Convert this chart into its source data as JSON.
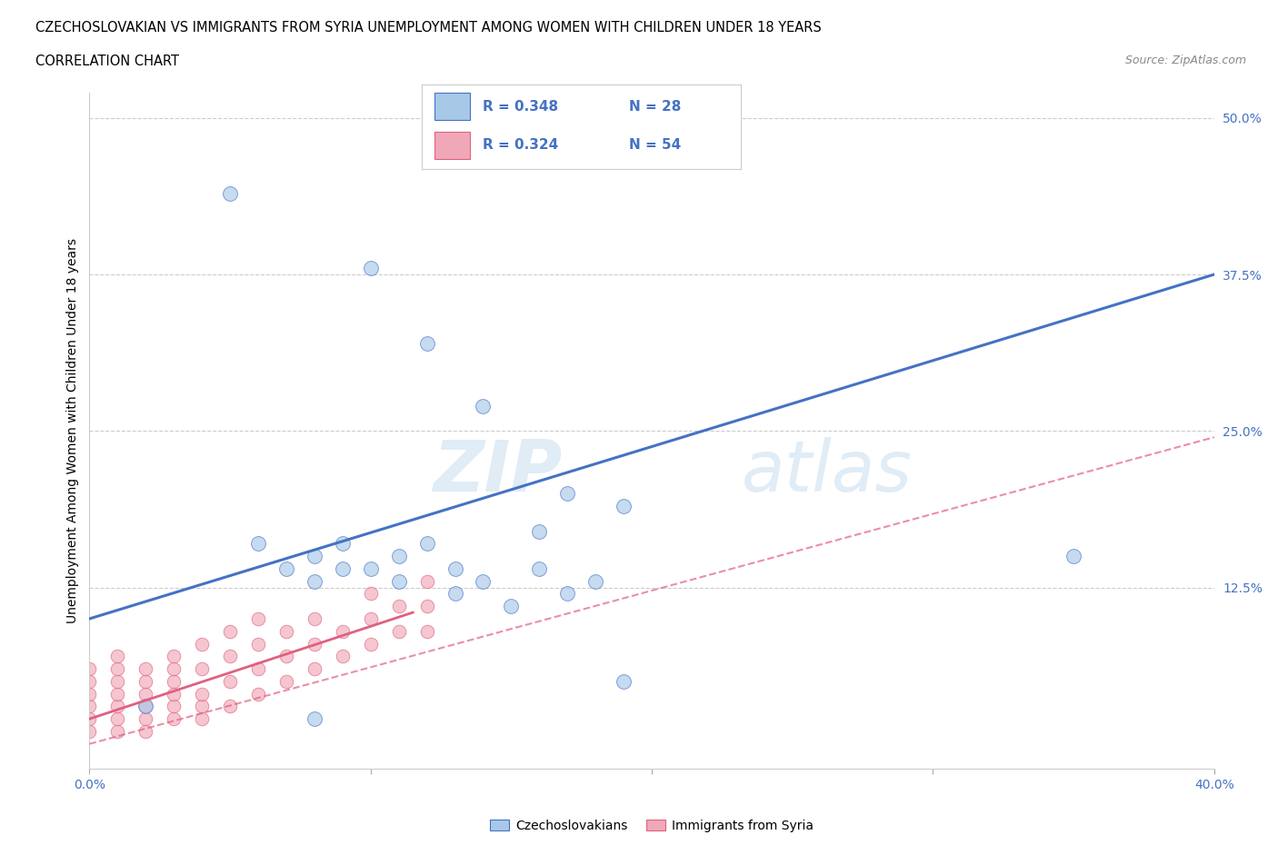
{
  "title_line1": "CZECHOSLOVAKIAN VS IMMIGRANTS FROM SYRIA UNEMPLOYMENT AMONG WOMEN WITH CHILDREN UNDER 18 YEARS",
  "title_line2": "CORRELATION CHART",
  "source": "Source: ZipAtlas.com",
  "ylabel": "Unemployment Among Women with Children Under 18 years",
  "xlim": [
    0.0,
    0.4
  ],
  "ylim": [
    -0.02,
    0.52
  ],
  "xticks": [
    0.0,
    0.1,
    0.2,
    0.3,
    0.4
  ],
  "xticklabels": [
    "0.0%",
    "",
    "",
    "",
    "40.0%"
  ],
  "ytick_positions": [
    0.0,
    0.125,
    0.25,
    0.375,
    0.5
  ],
  "ytick_labels_right": [
    "",
    "12.5%",
    "25.0%",
    "37.5%",
    "50.0%"
  ],
  "grid_color": "#cccccc",
  "watermark_zip": "ZIP",
  "watermark_atlas": "atlas",
  "legend_R1": "R = 0.348",
  "legend_N1": "N = 28",
  "legend_R2": "R = 0.324",
  "legend_N2": "N = 54",
  "blue_color": "#a8c8e8",
  "pink_color": "#f0a8b8",
  "line_blue": "#4472c4",
  "line_pink": "#e06080",
  "legend_text_color": "#4472c4",
  "blue_scatter_x": [
    0.05,
    0.1,
    0.12,
    0.14,
    0.17,
    0.02,
    0.06,
    0.07,
    0.08,
    0.08,
    0.09,
    0.09,
    0.1,
    0.11,
    0.11,
    0.12,
    0.13,
    0.13,
    0.14,
    0.15,
    0.16,
    0.17,
    0.19,
    0.35,
    0.18,
    0.16,
    0.08,
    0.19
  ],
  "blue_scatter_y": [
    0.44,
    0.38,
    0.32,
    0.27,
    0.2,
    0.03,
    0.16,
    0.14,
    0.13,
    0.15,
    0.14,
    0.16,
    0.14,
    0.13,
    0.15,
    0.16,
    0.12,
    0.14,
    0.13,
    0.11,
    0.14,
    0.12,
    0.19,
    0.15,
    0.13,
    0.17,
    0.02,
    0.05
  ],
  "pink_scatter_x": [
    0.0,
    0.0,
    0.0,
    0.0,
    0.0,
    0.0,
    0.01,
    0.01,
    0.01,
    0.01,
    0.01,
    0.01,
    0.01,
    0.02,
    0.02,
    0.02,
    0.02,
    0.02,
    0.02,
    0.03,
    0.03,
    0.03,
    0.03,
    0.03,
    0.03,
    0.04,
    0.04,
    0.04,
    0.04,
    0.04,
    0.05,
    0.05,
    0.05,
    0.05,
    0.06,
    0.06,
    0.06,
    0.06,
    0.07,
    0.07,
    0.07,
    0.08,
    0.08,
    0.08,
    0.09,
    0.09,
    0.1,
    0.1,
    0.1,
    0.11,
    0.11,
    0.12,
    0.12,
    0.12
  ],
  "pink_scatter_y": [
    0.01,
    0.02,
    0.03,
    0.04,
    0.05,
    0.06,
    0.01,
    0.02,
    0.03,
    0.04,
    0.05,
    0.06,
    0.07,
    0.01,
    0.02,
    0.03,
    0.04,
    0.05,
    0.06,
    0.02,
    0.03,
    0.04,
    0.05,
    0.06,
    0.07,
    0.02,
    0.03,
    0.04,
    0.06,
    0.08,
    0.03,
    0.05,
    0.07,
    0.09,
    0.04,
    0.06,
    0.08,
    0.1,
    0.05,
    0.07,
    0.09,
    0.06,
    0.08,
    0.1,
    0.07,
    0.09,
    0.08,
    0.1,
    0.12,
    0.09,
    0.11,
    0.09,
    0.11,
    0.13
  ],
  "blue_line_x": [
    0.0,
    0.4
  ],
  "blue_line_y": [
    0.1,
    0.375
  ],
  "pink_dashed_line_x": [
    0.0,
    0.4
  ],
  "pink_dashed_line_y": [
    0.0,
    0.245
  ],
  "pink_solid_line_x": [
    0.0,
    0.115
  ],
  "pink_solid_line_y": [
    0.02,
    0.105
  ]
}
